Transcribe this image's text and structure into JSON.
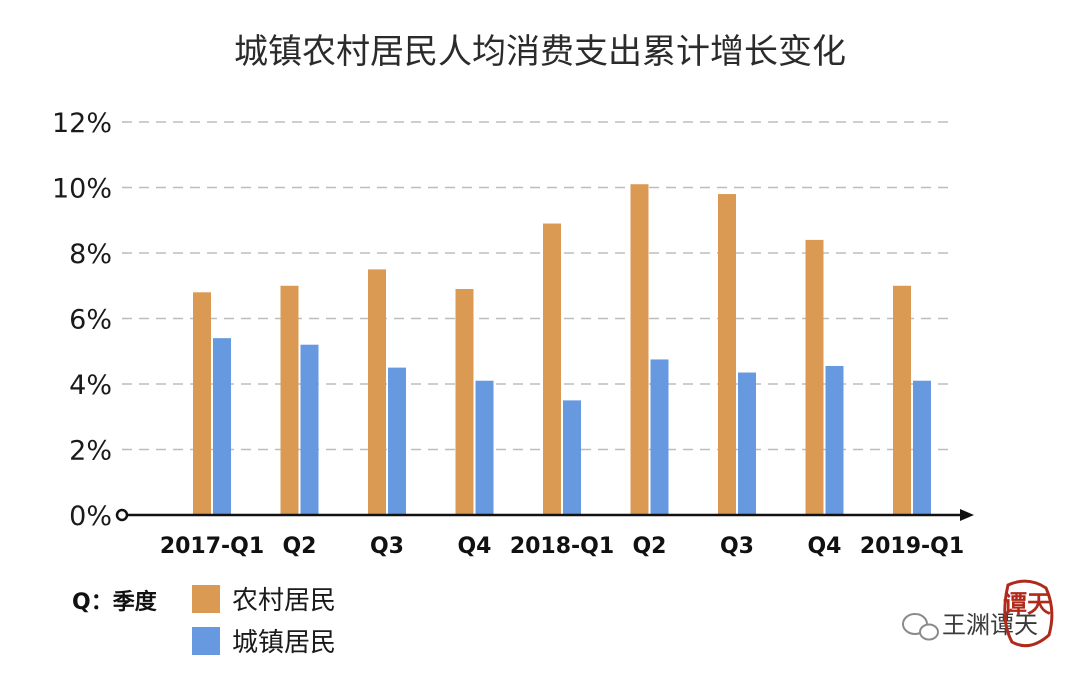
{
  "chart_data": {
    "type": "bar",
    "title": "城镇农村居民人均消费支出累计增长变化",
    "categories": [
      "2017-Q1",
      "Q2",
      "Q3",
      "Q4",
      "2018-Q1",
      "Q2",
      "Q3",
      "Q4",
      "2019-Q1"
    ],
    "series": [
      {
        "name": "农村居民",
        "color": "#DB9A54",
        "values": [
          6.8,
          7.0,
          7.5,
          6.9,
          8.9,
          10.1,
          9.8,
          8.4,
          7.0
        ]
      },
      {
        "name": "城镇居民",
        "color": "#6699E0",
        "values": [
          5.4,
          5.2,
          4.5,
          4.1,
          3.5,
          4.75,
          4.35,
          4.55,
          4.1
        ]
      }
    ],
    "y_ticks": [
      "0%",
      "2%",
      "4%",
      "6%",
      "8%",
      "10%",
      "12%"
    ],
    "ylim": [
      0,
      12
    ],
    "grid": true,
    "xlabel": "",
    "ylabel": "",
    "legend_note": "Q：季度",
    "legend_placement": "bottom-left"
  },
  "watermark": {
    "text": "王渊谭天",
    "icon": "wechat-icon",
    "seal_text": "谭天"
  }
}
